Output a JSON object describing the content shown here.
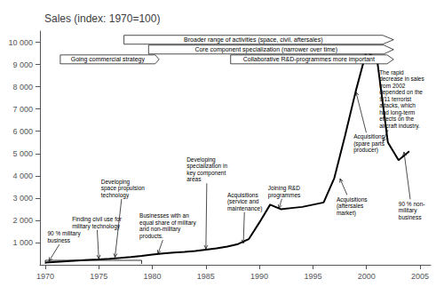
{
  "chart_data": {
    "type": "line",
    "title": "Sales (index: 1970=100)",
    "x": [
      1970,
      1971,
      1972,
      1973,
      1974,
      1975,
      1976,
      1977,
      1978,
      1979,
      1980,
      1981,
      1982,
      1983,
      1984,
      1985,
      1986,
      1987,
      1988,
      1989,
      1990,
      1991,
      1992,
      1993,
      1994,
      1995,
      1996,
      1997,
      1998,
      1999,
      2000,
      2001,
      2002,
      2003,
      2004
    ],
    "values": [
      100,
      130,
      160,
      190,
      215,
      240,
      270,
      305,
      350,
      400,
      460,
      510,
      550,
      580,
      620,
      680,
      740,
      820,
      930,
      1150,
      1900,
      2700,
      2500,
      2550,
      2600,
      2700,
      2800,
      3900,
      5800,
      7800,
      9600,
      9200,
      5500,
      4700,
      5100
    ],
    "color": "#000000",
    "xlim": [
      1969.5,
      2006
    ],
    "ylim": [
      0,
      10500
    ],
    "xticks": [
      1970,
      1975,
      1980,
      1985,
      1990,
      1995,
      2000,
      2005
    ],
    "yticks": [
      {
        "value": 1000,
        "label": "1 000"
      },
      {
        "value": 2000,
        "label": "2 000"
      },
      {
        "value": 3000,
        "label": "3 000"
      },
      {
        "value": 4000,
        "label": "4 000"
      },
      {
        "value": 5000,
        "label": "5 000"
      },
      {
        "value": 6000,
        "label": "6 000"
      },
      {
        "value": 7000,
        "label": "7 000"
      },
      {
        "value": 8000,
        "label": "8 000"
      },
      {
        "value": 9000,
        "label": "9 000"
      },
      {
        "value": 10000,
        "label": "10 000"
      }
    ],
    "grid": false,
    "phases": [
      "Broader range of activities (space, civil, aftersales)",
      "Core component specialization (narrower over time)",
      "Going commercial strategy",
      "Collaborative R&D-programmes more important"
    ],
    "annotations": [
      {
        "text": "90 % military\nbusiness",
        "x": 1970.3,
        "y": 130,
        "text_x": 1970.2,
        "text_y": 1550
      },
      {
        "text": "Finding civil use for\nmilitary technology",
        "x": 1975.0,
        "y": 240,
        "text_x": 1972.5,
        "text_y": 2200
      },
      {
        "text": "Developing\nspace propulsion\ntechnology",
        "x": 1976.5,
        "y": 305,
        "text_x": 1975.2,
        "text_y": 3900
      },
      {
        "text": "Businesses with an\nequal share of military\nand non-military\nproducts.",
        "x": 1980.5,
        "y": 460,
        "text_x": 1978.8,
        "text_y": 2350
      },
      {
        "text": "Developing\nspecialization in\nkey component\nareas",
        "x": 1985.0,
        "y": 680,
        "text_x": 1983.2,
        "text_y": 4900
      },
      {
        "text": "Acquisitions\n(service and\nmaintenance)",
        "x": 1988.5,
        "y": 930,
        "text_x": 1987.0,
        "text_y": 3300
      },
      {
        "text": "Joining R&D\nprogrammes",
        "x": 1991.8,
        "y": 2500,
        "text_x": 1990.8,
        "text_y": 3600
      },
      {
        "text": "Acquisitions\n(spare parts\nproducer)",
        "x": 1999.0,
        "y": 7800,
        "text_x": 1998.8,
        "text_y": 5900
      },
      {
        "text": "Acquisitions\n(aftersales\nmarket)",
        "x": 1997.5,
        "y": 3900,
        "text_x": 1997.2,
        "text_y": 3100
      },
      {
        "text": "90 % non-\nmilitary\nbusiness",
        "x": 2003.5,
        "y": 5100,
        "text_x": 2003.0,
        "text_y": 2900
      },
      {
        "text": "The rapid\ndecrease in sales\nfrom 2002\ndepended on the\n9/11 terrorist\nattacks, which\nhad long-term\neffects on the\naircraft industry.",
        "x": 2001.5,
        "y": 5500,
        "text_x": 2001.2,
        "text_y": 8800
      }
    ],
    "bracket": {
      "x": [
        1970,
        1979
      ],
      "y": 200
    }
  }
}
